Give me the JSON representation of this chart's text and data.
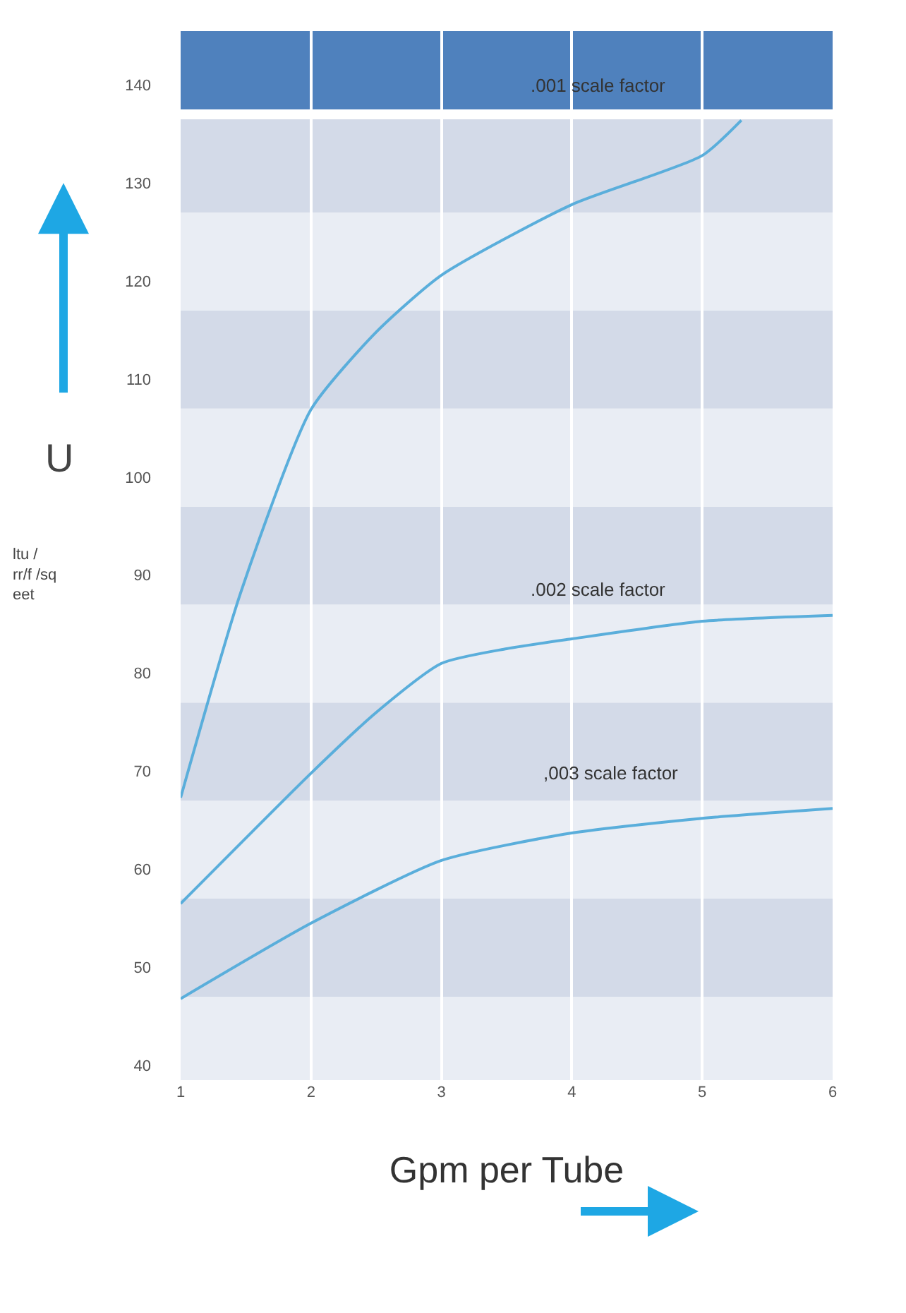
{
  "chart_data": {
    "type": "line",
    "xlabel": "Gpm per Tube",
    "ylabel": "U",
    "annotations": [
      "ltu /\nrr/f /sq\neet",
      ".001 scale factor",
      ".002 scale factor",
      ",003 scale factor"
    ],
    "series": [
      {
        "color": "#5aaedb",
        "x": [
          1,
          1.46,
          2,
          2.5,
          3,
          4,
          5,
          5.3
        ],
        "values": [
          67.3,
          88.2,
          106.9,
          114.8,
          120.6,
          127.8,
          132.8,
          136.4
        ]
      },
      {
        "color": "#5aaedb",
        "x": [
          1,
          2,
          2.5,
          3,
          3.5,
          4,
          5,
          6
        ],
        "values": [
          56.5,
          69.8,
          76,
          81,
          82.5,
          83.5,
          85.3,
          85.9
        ]
      },
      {
        "color": "#5aaedb",
        "x": [
          1,
          2,
          3,
          4,
          5,
          6
        ],
        "values": [
          46.8,
          54.5,
          60.9,
          63.7,
          65.2,
          66.2
        ]
      }
    ],
    "xlim": [
      1,
      6
    ],
    "xticks": [
      1,
      2,
      3,
      4,
      5,
      6
    ],
    "ylim": [
      38.5,
      145.5
    ],
    "yticks": [
      40,
      50,
      60,
      70,
      80,
      90,
      100,
      110,
      120,
      130,
      140
    ],
    "grid": "x",
    "marker": "none",
    "line_style": "solid",
    "bands": [
      {
        "axis": "y",
        "from": 38.5,
        "to": 47,
        "color": "#e9edf4"
      },
      {
        "axis": "y",
        "from": 47,
        "to": 57,
        "color": "#d3dae8"
      },
      {
        "axis": "y",
        "from": 57,
        "to": 67,
        "color": "#e9edf4"
      },
      {
        "axis": "y",
        "from": 67,
        "to": 77,
        "color": "#d3dae8"
      },
      {
        "axis": "y",
        "from": 77,
        "to": 87,
        "color": "#e9edf4"
      },
      {
        "axis": "y",
        "from": 87,
        "to": 97,
        "color": "#d3dae8"
      },
      {
        "axis": "y",
        "from": 97,
        "to": 107,
        "color": "#e9edf4"
      },
      {
        "axis": "y",
        "from": 107,
        "to": 117,
        "color": "#d3dae8"
      },
      {
        "axis": "y",
        "from": 117,
        "to": 127,
        "color": "#e9edf4"
      },
      {
        "axis": "y",
        "from": 127,
        "to": 136.5,
        "color": "#d3dae8"
      },
      {
        "axis": "y",
        "from": 137.5,
        "to": 145.5,
        "color": "#4f81bd"
      }
    ]
  }
}
